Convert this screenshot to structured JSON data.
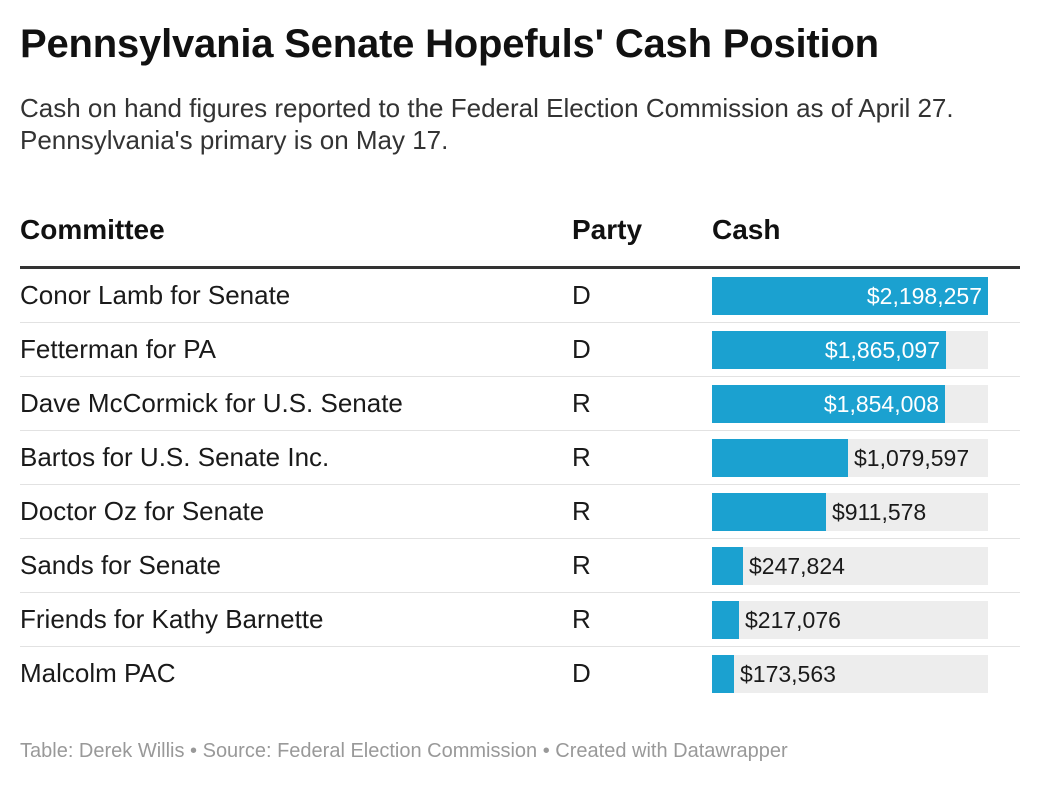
{
  "title": "Pennsylvania Senate Hopefuls' Cash Position",
  "subtitle": "Cash on hand figures reported to the Federal Election Commission as of April 27. Pennsylvania's primary is on May 17.",
  "headers": {
    "committee": "Committee",
    "party": "Party",
    "cash": "Cash"
  },
  "colors": {
    "bar": "#1ba1d0",
    "track": "#ededed"
  },
  "footer": "Table: Derek Willis • Source: Federal Election Commission • Created with Datawrapper",
  "chart_data": {
    "type": "table",
    "title": "Pennsylvania Senate Hopefuls' Cash Position",
    "columns": [
      "Committee",
      "Party",
      "Cash"
    ],
    "xlim": [
      0,
      2198257
    ],
    "rows": [
      {
        "committee": "Conor Lamb for Senate",
        "party": "D",
        "cash": 2198257,
        "cash_label": "$2,198,257"
      },
      {
        "committee": "Fetterman for PA",
        "party": "D",
        "cash": 1865097,
        "cash_label": "$1,865,097"
      },
      {
        "committee": "Dave McCormick for U.S. Senate",
        "party": "R",
        "cash": 1854008,
        "cash_label": "$1,854,008"
      },
      {
        "committee": "Bartos for U.S. Senate Inc.",
        "party": "R",
        "cash": 1079597,
        "cash_label": "$1,079,597"
      },
      {
        "committee": "Doctor Oz for Senate",
        "party": "R",
        "cash": 911578,
        "cash_label": "$911,578"
      },
      {
        "committee": "Sands for Senate",
        "party": "R",
        "cash": 247824,
        "cash_label": "$247,824"
      },
      {
        "committee": "Friends for Kathy Barnette",
        "party": "R",
        "cash": 217076,
        "cash_label": "$217,076"
      },
      {
        "committee": "Malcolm PAC",
        "party": "D",
        "cash": 173563,
        "cash_label": "$173,563"
      }
    ]
  }
}
